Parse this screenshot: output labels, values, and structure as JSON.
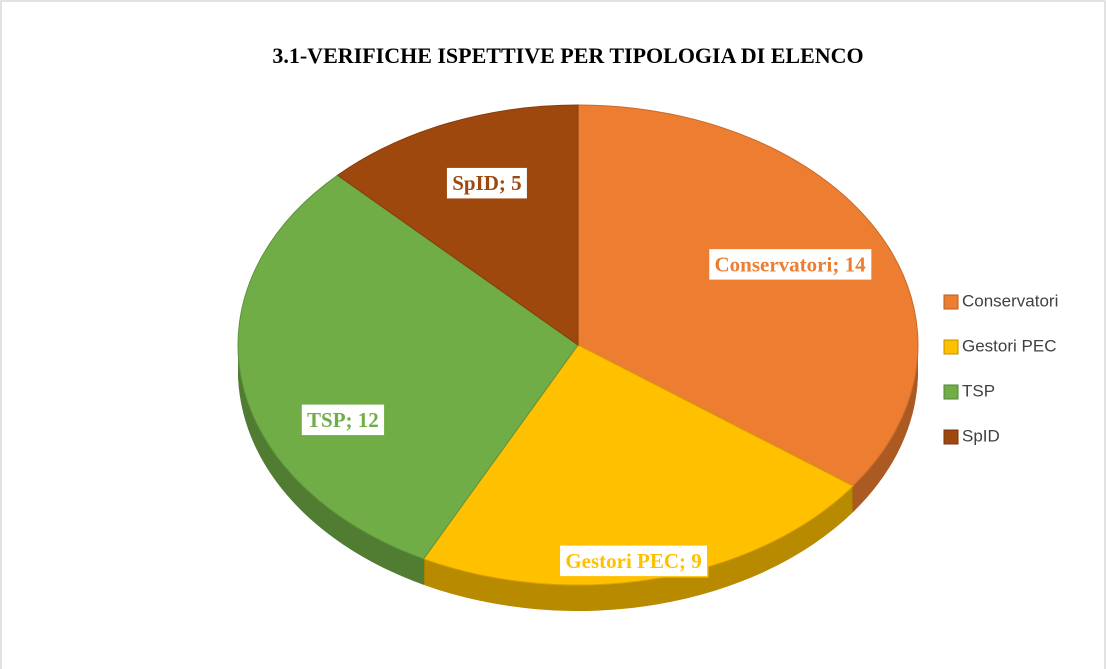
{
  "chart_data": {
    "type": "pie",
    "title": "3.1-VERIFICHE ISPETTIVE PER TIPOLOGIA DI ELENCO",
    "categories": [
      "Conservatori",
      "Gestori PEC",
      "TSP",
      "SpID"
    ],
    "values": [
      14,
      9,
      12,
      5
    ],
    "value_labels": [
      "Conservatori; 14",
      "Gestori PEC; 9",
      "TSP; 12",
      "SpID; 5"
    ],
    "colors": [
      "#ED7D31",
      "#FFC000",
      "#70AD47",
      "#9E480E"
    ],
    "legend": "right"
  }
}
